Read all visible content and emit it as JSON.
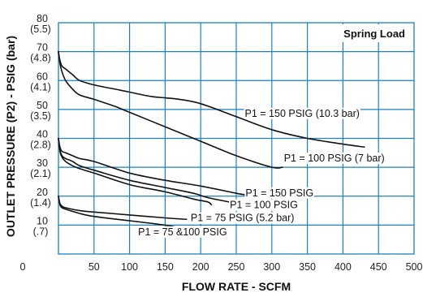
{
  "chart_data": {
    "type": "line",
    "title": "Spring Load",
    "xlabel": "FLOW RATE - SCFM",
    "ylabel": "OUTLET PRESSURE (P2) - PSIG (bar)",
    "xlim": [
      0,
      500
    ],
    "ylim": [
      0,
      80
    ],
    "x_ticks": [
      {
        "value": 0,
        "label": "0"
      },
      {
        "value": 50,
        "label": "50"
      },
      {
        "value": 100,
        "label": "100"
      },
      {
        "value": 150,
        "label": "150"
      },
      {
        "value": 200,
        "label": "200"
      },
      {
        "value": 250,
        "label": "250"
      },
      {
        "value": 300,
        "label": "300"
      },
      {
        "value": 350,
        "label": "350"
      },
      {
        "value": 400,
        "label": "400"
      },
      {
        "value": 450,
        "label": "450"
      },
      {
        "value": 500,
        "label": "500"
      }
    ],
    "y_ticks": [
      {
        "value": 10,
        "label": "10",
        "sub": "(.7)"
      },
      {
        "value": 20,
        "label": "20",
        "sub": "(1.4)"
      },
      {
        "value": 30,
        "label": "30",
        "sub": "(2.1)"
      },
      {
        "value": 40,
        "label": "40",
        "sub": "(2.8)"
      },
      {
        "value": 50,
        "label": "50",
        "sub": "(3.5)"
      },
      {
        "value": 60,
        "label": "60",
        "sub": "(4.1)"
      },
      {
        "value": 70,
        "label": "70",
        "sub": "(4.8)"
      },
      {
        "value": 80,
        "label": "80",
        "sub": "(5.5)"
      }
    ],
    "grid": true,
    "legend": "none",
    "line_color": "#111111",
    "grid_color": "#1a82c4",
    "series": [
      {
        "x": [
          0,
          2,
          5,
          10,
          20,
          30,
          50,
          80,
          100,
          130,
          150,
          170,
          200,
          250,
          300,
          350,
          400,
          430
        ],
        "y": [
          70,
          67,
          65,
          64,
          62,
          60,
          58.5,
          57,
          56,
          54.5,
          54,
          53.5,
          52,
          47.5,
          43,
          40,
          38,
          37
        ]
      },
      {
        "x": [
          0,
          2,
          5,
          10,
          20,
          30,
          50,
          80,
          100,
          150,
          200,
          250,
          300,
          315
        ],
        "y": [
          70,
          66,
          63,
          60,
          57,
          55,
          53.5,
          51,
          49,
          44,
          39,
          34,
          30,
          30
        ]
      },
      {
        "x": [
          0,
          2,
          5,
          10,
          20,
          30,
          50,
          100,
          150,
          200,
          250,
          262
        ],
        "y": [
          40,
          37,
          35.5,
          35,
          34,
          33,
          32,
          28,
          25.5,
          23.5,
          21,
          20.5
        ]
      },
      {
        "x": [
          0,
          2,
          5,
          10,
          20,
          30,
          50,
          100,
          150,
          190,
          210,
          240
        ],
        "y": [
          40,
          36,
          34,
          33,
          32,
          30.5,
          29,
          25.5,
          23,
          21,
          19.5,
          18
        ]
      },
      {
        "x": [
          0,
          2,
          5,
          10,
          20,
          30,
          50,
          100,
          150,
          190,
          210,
          215
        ],
        "y": [
          40,
          35.5,
          33.5,
          32,
          30.5,
          29.5,
          28,
          24,
          21.5,
          19,
          18,
          17
        ]
      },
      {
        "x": [
          0,
          2,
          5,
          10,
          30,
          50,
          100,
          150,
          180
        ],
        "y": [
          20,
          17.5,
          16.5,
          16,
          15,
          14.5,
          13.5,
          12.5,
          12
        ]
      },
      {
        "x": [
          0,
          2,
          5,
          10,
          30,
          50,
          100,
          150,
          170
        ],
        "y": [
          20,
          17,
          16,
          15.5,
          14,
          13,
          11.5,
          10,
          9
        ]
      }
    ],
    "annotations": [
      {
        "text": "P1 = 150 PSIG (10.3 bar)",
        "x": 262,
        "y": 47.5
      },
      {
        "text": "P1 = 100 PSIG (7 bar)",
        "x": 317,
        "y": 32
      },
      {
        "text": "P1 = 150 PSIG",
        "x": 263,
        "y": 20
      },
      {
        "text": "P1 = 100 PSIG",
        "x": 241,
        "y": 15.8
      },
      {
        "text": "P1 = 75 PSIG (5.2 bar)",
        "x": 186,
        "y": 11.3
      },
      {
        "text": "P1 = 75 &100 PSIG",
        "x": 112,
        "y": 6.5
      }
    ]
  }
}
